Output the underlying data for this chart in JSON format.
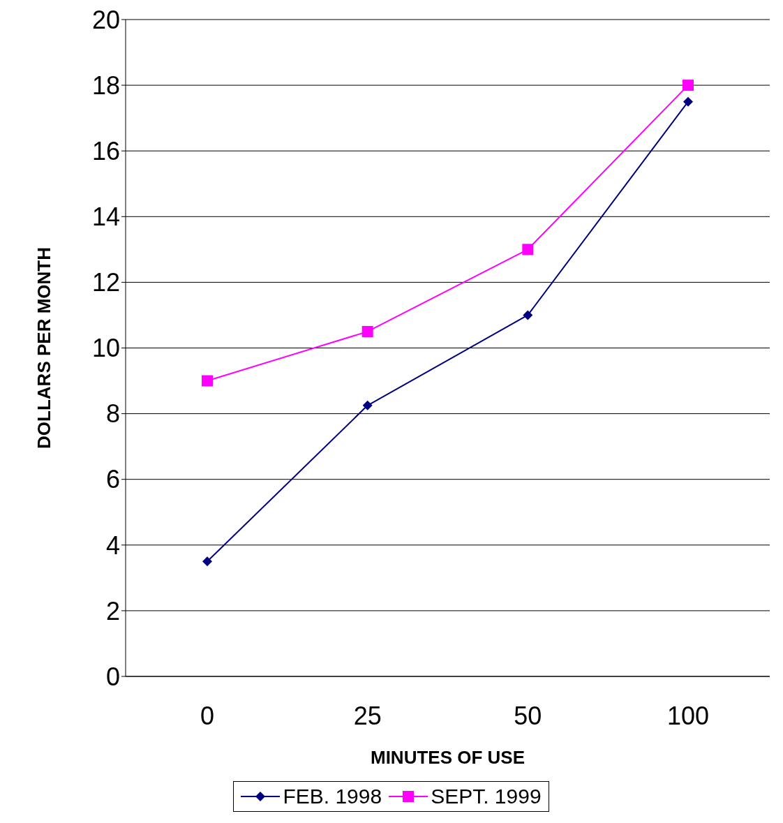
{
  "chart_data": {
    "type": "line",
    "xlabel": "MINUTES OF USE",
    "ylabel": "DOLLARS PER MONTH",
    "categories": [
      "0",
      "25",
      "50",
      "100"
    ],
    "series": [
      {
        "name": "FEB. 1998",
        "color": "#000080",
        "marker": "diamond",
        "values": [
          3.5,
          8.25,
          11,
          17.5
        ]
      },
      {
        "name": "SEPT. 1999",
        "color": "#ff00ff",
        "marker": "square",
        "values": [
          9,
          10.5,
          13,
          18
        ]
      }
    ],
    "ylim": [
      0,
      20
    ],
    "yticks": [
      0,
      2,
      4,
      6,
      8,
      10,
      12,
      14,
      16,
      18,
      20
    ],
    "grid": "y",
    "legend": "bottom"
  }
}
